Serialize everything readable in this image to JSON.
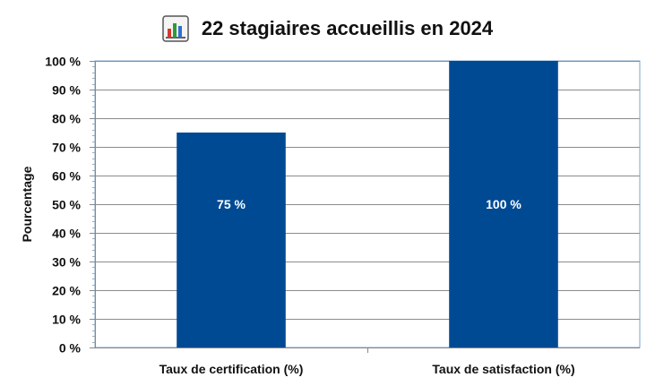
{
  "chart_data": {
    "type": "bar",
    "title": "22 stagiaires accueillis en 2024",
    "title_icon": "bar-chart-icon",
    "xlabel": "",
    "ylabel": "Pourcentage",
    "categories": [
      "Taux de certification (%)",
      "Taux de satisfaction (%)"
    ],
    "values": [
      75,
      100
    ],
    "value_labels": [
      "75 %",
      "100 %"
    ],
    "ylim": [
      0,
      100
    ],
    "yticks": [
      0,
      10,
      20,
      30,
      40,
      50,
      60,
      70,
      80,
      90,
      100
    ],
    "ytick_labels": [
      "0 %",
      "10 %",
      "20 %",
      "30 %",
      "40 %",
      "50 %",
      "60 %",
      "70 %",
      "80 %",
      "90 %",
      "100 %"
    ],
    "grid": true,
    "legend": "none",
    "colors": {
      "bar": "#004a94",
      "grid": "#8c8c8c",
      "border": "#7aa6cf",
      "value_label": "#ffffff"
    }
  }
}
